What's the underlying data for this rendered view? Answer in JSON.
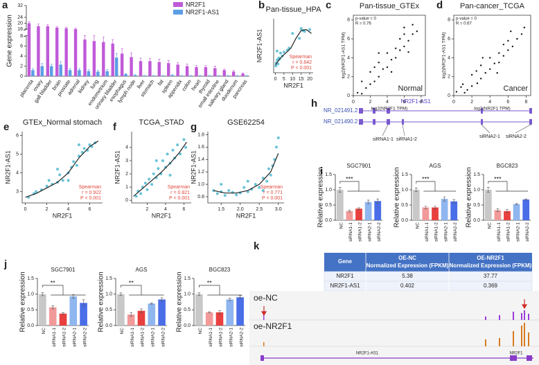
{
  "chart_data": [
    {
      "type": "grouped_bar",
      "panel": "a",
      "y_label": "Gene expression",
      "categories": [
        "placenta",
        "ovary",
        "gall bladder",
        "brain",
        "prostate",
        "adrenal",
        "kidney",
        "lung",
        "endometrium",
        "urinary bladder",
        "esophagus",
        "lymph node",
        "liver",
        "stomach",
        "fat",
        "spleen",
        "appendix",
        "colon",
        "heart",
        "thyroid",
        "small intestine",
        "salivary gland",
        "duodenum",
        "pancreas"
      ],
      "series": [
        {
          "name": "NR2F1",
          "color": "#c05ad8",
          "values": [
            20,
            18,
            18,
            17,
            16.5,
            16,
            7.3,
            7,
            6.8,
            6.5,
            4.5,
            3.8,
            3,
            3,
            2.8,
            2.6,
            2.3,
            2,
            1.8,
            1.8,
            1.6,
            1.2,
            0.9,
            0.5
          ],
          "errors": [
            1,
            1.5,
            1,
            0.8,
            0.8,
            0.8,
            1.2,
            1.5,
            1,
            0.8,
            1,
            0.8,
            0.6,
            0.5,
            0.6,
            0.5,
            0.4,
            0.4,
            0.3,
            0.3,
            0.4,
            0.2,
            0.2,
            0.1
          ]
        },
        {
          "name": "NR2F1-AS1",
          "color": "#5b9ee6",
          "values": [
            1.2,
            2,
            2,
            2.3,
            1.2,
            1.2,
            1,
            0.9,
            1,
            3.7,
            0.4,
            0.2,
            0.1,
            0.1,
            0.1,
            0.2,
            0.1,
            0.1,
            0.1,
            0.1,
            0.1,
            0.1,
            0.1,
            0.1
          ],
          "errors": [
            0.3,
            0.5,
            0.4,
            0.6,
            0.3,
            0.3,
            0.3,
            0.3,
            0.3,
            0.8,
            0.1,
            0.1,
            0.05,
            0.05,
            0.05,
            0.1,
            0.05,
            0.05,
            0.05,
            0.05,
            0.05,
            0.05,
            0.05,
            0.05
          ]
        }
      ],
      "ylim": [
        0,
        32
      ],
      "axis_break": [
        8,
        16
      ],
      "yticks": [
        0,
        2,
        4,
        6,
        8,
        16,
        20,
        24,
        32
      ]
    },
    {
      "type": "scatter",
      "panel": "b",
      "title": "Pan-tissue_HPA",
      "x_label": "NR2F1",
      "y_label": "NR2F1-AS1",
      "color": "#4fb8d0",
      "x": [
        0.3,
        0.5,
        1,
        1.5,
        2,
        2.5,
        3,
        4,
        5,
        7,
        8,
        10,
        14,
        15,
        16,
        17,
        20,
        1
      ],
      "y": [
        0.2,
        0.5,
        0.8,
        0.4,
        1,
        0.9,
        1.5,
        1.2,
        1.6,
        1.8,
        2,
        3.5,
        3,
        4,
        3.8,
        3.7,
        3.9,
        1.7
      ],
      "fit_x": [
        0,
        3,
        6,
        9,
        12,
        15,
        18,
        21
      ],
      "fit_y": [
        0.3,
        1,
        1.5,
        2,
        3,
        3.8,
        3.9,
        3.5
      ],
      "xlim": [
        -1,
        22
      ],
      "xticks": [
        0,
        5,
        10,
        15,
        20
      ],
      "ylim": [
        -0.5,
        5
      ],
      "annotations": [
        "Spearman",
        "r = 0.642",
        "P < 0.001"
      ],
      "annotation_color": "#e0463a"
    },
    {
      "type": "scatter",
      "panel": "c",
      "title": "Pan-tissue_GTEx",
      "x_label": "log2(NR2F1 TPM)",
      "y_label": "log2(NR2F1-AS1 TPM)",
      "color": "#111111",
      "x": [
        0.5,
        1,
        1.5,
        2,
        2,
        2.5,
        3,
        3,
        3.5,
        4,
        4,
        4.5,
        5,
        5,
        5.5,
        5.5,
        6,
        6,
        6.5,
        6.5,
        7,
        7,
        7.5,
        1,
        3,
        4.5,
        6,
        2.5
      ],
      "y": [
        0.3,
        1.5,
        0.8,
        2.5,
        1.2,
        3,
        2,
        3.5,
        2.8,
        4.5,
        3,
        3.8,
        5,
        4,
        4.8,
        6,
        5.2,
        6.5,
        5.8,
        4.6,
        6.5,
        7.5,
        6.8,
        0.2,
        4.5,
        2.5,
        7.2,
        1.5
      ],
      "xlim": [
        0,
        8.5
      ],
      "xticks": [
        0,
        2,
        4,
        6,
        8
      ],
      "ylim": [
        0,
        8.5
      ],
      "yticks": [
        0,
        2,
        4,
        6,
        8
      ],
      "stats": [
        "p-value = 0",
        "R = 0.76"
      ],
      "tag": "Normal"
    },
    {
      "type": "scatter",
      "panel": "d",
      "title": "Pan-cancer_TCGA",
      "x_label": "log2(NR2F1 TPM)",
      "y_label": "log2(NR2F1-AS1 TPM)",
      "color": "#111111",
      "x": [
        0.3,
        1,
        1.5,
        2,
        2,
        2.5,
        3,
        3,
        3.5,
        4,
        4,
        4.5,
        5,
        5,
        5.5,
        5.5,
        6,
        6,
        6.5,
        7,
        7.5,
        1.2,
        3.2,
        4.8,
        6.3,
        2.6,
        0.8,
        7.8
      ],
      "y": [
        0.4,
        1.2,
        0.6,
        2.2,
        1,
        2.6,
        1.8,
        3.2,
        2.4,
        4,
        2.8,
        3.4,
        4.5,
        3.5,
        4.2,
        5.4,
        4.8,
        5.8,
        5.2,
        6,
        6.5,
        0.3,
        4,
        2.4,
        6.8,
        1.3,
        0.9,
        7.2
      ],
      "xlim": [
        0,
        8.5
      ],
      "xticks": [
        0,
        2,
        4,
        6,
        8
      ],
      "ylim": [
        0,
        8.5
      ],
      "yticks": [
        0,
        2,
        4,
        6,
        8
      ],
      "stats": [
        "p-value = 0",
        "R = 0.67"
      ],
      "tag": "Cancer"
    },
    {
      "type": "scatter",
      "panel": "e",
      "title": "GTEx_Normal stomach",
      "x_label": "NR2F1",
      "y_label": "NR2F1-AS1",
      "color": "#4fb8d0",
      "x": [
        0.3,
        0.8,
        1,
        1.5,
        2,
        2.2,
        2.5,
        3,
        3.2,
        3.5,
        4,
        4.3,
        4.5,
        4.8,
        5,
        5.3,
        5.5,
        5.8,
        6,
        6.2,
        6.5,
        5,
        4,
        3
      ],
      "y": [
        2.7,
        2.9,
        3,
        3.1,
        3.3,
        3.6,
        3.4,
        3.5,
        3.9,
        3.6,
        4,
        4.3,
        4.6,
        4.4,
        4.9,
        5.1,
        5.3,
        5.2,
        5.5,
        5.4,
        5.6,
        5.5,
        3.6,
        4.2
      ],
      "fit_x": [
        0,
        1,
        2,
        3,
        4,
        5,
        6,
        6.8
      ],
      "fit_y": [
        2.7,
        2.9,
        3.2,
        3.5,
        4,
        4.8,
        5.4,
        5.7
      ],
      "xlim": [
        -0.3,
        7.2
      ],
      "xticks": [
        0,
        2,
        4,
        6
      ],
      "ylim": [
        2.4,
        6.2
      ],
      "yticks": [
        3,
        4,
        5,
        6
      ],
      "annotations": [
        "Spearman",
        "r = 0.922",
        "P < 0.001"
      ],
      "annotation_color": "#e0463a"
    },
    {
      "type": "scatter",
      "panel": "f",
      "title": "TCGA_STAD",
      "x_label": "NR2F1",
      "y_label": "NR2F1-AS1",
      "color": "#4fb8d0",
      "x": [
        0.8,
        1,
        1.3,
        1.5,
        1.8,
        2,
        2.2,
        2.5,
        2.7,
        3,
        3.2,
        3.5,
        3.7,
        4,
        4.2,
        4.5,
        4.8,
        5,
        5.3,
        5.6,
        6,
        6.2,
        3,
        4.5
      ],
      "y": [
        0.3,
        0.7,
        0.5,
        1,
        1.3,
        0.8,
        1.6,
        1.2,
        2,
        1.7,
        2.4,
        2,
        3,
        2.5,
        3.5,
        2.8,
        3.8,
        3.2,
        4.2,
        3.5,
        4.6,
        4,
        3,
        1.9
      ],
      "fit_x": [
        0.5,
        1.5,
        2.5,
        3.5,
        4.5,
        5.5,
        6.3
      ],
      "fit_y": [
        0.3,
        0.9,
        1.5,
        2.1,
        2.8,
        3.6,
        4.4
      ],
      "xlim": [
        0.3,
        6.8
      ],
      "xticks": [
        2,
        4,
        6
      ],
      "ylim": [
        -0.2,
        5.2
      ],
      "yticks": [
        0,
        1,
        2,
        3,
        4
      ],
      "annotations": [
        "Spearman",
        "r = 0.821",
        "P < 0.001"
      ],
      "annotation_color": "#e0463a"
    },
    {
      "type": "scatter",
      "panel": "g",
      "title": "GSE62254",
      "x_label": "NR2F1",
      "y_label": "NR2F1-AS1",
      "color": "#4fb8d0",
      "x": [
        1.3,
        1.4,
        1.5,
        1.6,
        1.7,
        1.8,
        1.9,
        2,
        2.1,
        2.2,
        2.3,
        2.4,
        2.5,
        2.6,
        2.7,
        2.75,
        2.8,
        2.9,
        2.95,
        3,
        2.85,
        1.5,
        2.2,
        2.6
      ],
      "y": [
        0.9,
        0.85,
        0.88,
        0.82,
        0.9,
        0.87,
        0.83,
        0.86,
        0.95,
        0.88,
        0.92,
        1,
        0.95,
        1.1,
        1.05,
        1.25,
        1.15,
        1.4,
        1.6,
        1.75,
        1.3,
        1,
        1.05,
        0.9
      ],
      "fit_x": [
        1.3,
        1.6,
        1.9,
        2.2,
        2.5,
        2.8,
        3
      ],
      "fit_y": [
        0.9,
        0.86,
        0.86,
        0.9,
        1,
        1.2,
        1.5
      ],
      "xlim": [
        1.15,
        3.15
      ],
      "xticks": [
        1.5,
        {
          "value": 2,
          "label": "2.0"
        },
        2.5,
        {
          "value": 3,
          "label": "3.0"
        }
      ],
      "ylim": [
        0.7,
        1.85
      ],
      "yticks": [
        0.8,
        {
          "value": 1,
          "label": "1.0"
        },
        1.2,
        1.4,
        1.6,
        1.8
      ],
      "annotations": [
        "Spearman",
        "r = 0.771",
        "P < 0.001"
      ],
      "annotation_color": "#e0463a"
    },
    {
      "type": "bar",
      "panel": "i",
      "title": "SGC7901",
      "y_label": "Relative expression",
      "significance": "***",
      "categories": [
        "NC",
        "siRNA1-1",
        "siRNA1-2",
        "siRNA2-1",
        "siRNA2-2"
      ],
      "colors": [
        "#c8c8c8",
        "#f29a9a",
        "#e8403f",
        "#8fb6ef",
        "#4a6ee8"
      ],
      "values": [
        1,
        0.3,
        0.38,
        0.6,
        0.63
      ],
      "errors": [
        0.08,
        0.03,
        0.03,
        0.06,
        0.07
      ],
      "ylim": [
        0,
        1.5
      ],
      "yticks": [
        {
          "value": 0,
          "label": "0.0"
        },
        0.5,
        {
          "value": 1,
          "label": "1.0"
        },
        1.5
      ]
    },
    {
      "type": "bar",
      "title": "AGS",
      "y_label": "Relative expression",
      "significance": "***",
      "categories": [
        "NC",
        "siRNA1-1",
        "siRNA1-2",
        "siRNA2-1",
        "siRNA2-2"
      ],
      "colors": [
        "#c8c8c8",
        "#f29a9a",
        "#e8403f",
        "#8fb6ef",
        "#4a6ee8"
      ],
      "values": [
        1,
        0.42,
        0.42,
        0.7,
        0.62
      ],
      "errors": [
        0.06,
        0.04,
        0.04,
        0.07,
        0.06
      ],
      "ylim": [
        0,
        1.5
      ],
      "yticks": [
        {
          "value": 0,
          "label": "0.0"
        },
        0.5,
        {
          "value": 1,
          "label": "1.0"
        },
        1.5
      ]
    },
    {
      "type": "bar",
      "title": "BGC823",
      "y_label": "Relative expression",
      "significance": "***",
      "categories": [
        "NC",
        "siRNA1-1",
        "siRNA1-2",
        "siRNA2-1",
        "siRNA2-2"
      ],
      "colors": [
        "#c8c8c8",
        "#f29a9a",
        "#e8403f",
        "#8fb6ef",
        "#4a6ee8"
      ],
      "values": [
        1,
        0.33,
        0.3,
        0.53,
        0.68
      ],
      "errors": [
        0.08,
        0.05,
        0.05,
        0.02,
        0.02
      ],
      "ylim": [
        0,
        1.5
      ],
      "yticks": [
        {
          "value": 0,
          "label": "0.0"
        },
        0.5,
        {
          "value": 1,
          "label": "1.0"
        },
        1.5
      ]
    },
    {
      "type": "bar",
      "panel": "j",
      "title": "SGC7901",
      "y_label": "Relative expression",
      "significance": "**",
      "categories": [
        "NC",
        "siRNA1-1",
        "siRNA1-2",
        "siRNA2-1",
        "siRNA2-2"
      ],
      "colors": [
        "#c8c8c8",
        "#f29a9a",
        "#e8403f",
        "#8fb6ef",
        "#4a6ee8"
      ],
      "values": [
        1,
        0.58,
        0.38,
        0.93,
        0.72
      ],
      "errors": [
        0.05,
        0.05,
        0.03,
        0.06,
        0.1
      ],
      "ylim": [
        0,
        1.5
      ],
      "yticks": [
        {
          "value": 0,
          "label": "0.0"
        },
        0.5,
        {
          "value": 1,
          "label": "1.0"
        },
        1.5
      ]
    },
    {
      "type": "bar",
      "title": "AGS",
      "y_label": "Relative expression",
      "significance": "**",
      "categories": [
        "NC",
        "siRNA1-1",
        "siRNA1-2",
        "siRNA2-1",
        "siRNA2-2"
      ],
      "colors": [
        "#c8c8c8",
        "#f29a9a",
        "#e8403f",
        "#8fb6ef",
        "#4a6ee8"
      ],
      "values": [
        1,
        0.35,
        0.47,
        0.7,
        0.83
      ],
      "errors": [
        0.04,
        0.06,
        0.06,
        0.02,
        0.05
      ],
      "ylim": [
        0,
        1.5
      ],
      "yticks": [
        {
          "value": 0,
          "label": "0.0"
        },
        0.5,
        {
          "value": 1,
          "label": "1.0"
        },
        1.5
      ]
    },
    {
      "type": "bar",
      "title": "BGC823",
      "y_label": "Relative expression",
      "significance": "**",
      "categories": [
        "NC",
        "siRNA1-1",
        "siRNA1-2",
        "siRNA2-1",
        "siRNA2-2"
      ],
      "colors": [
        "#c8c8c8",
        "#f29a9a",
        "#e8403f",
        "#8fb6ef",
        "#4a6ee8"
      ],
      "values": [
        1,
        0.42,
        0.42,
        0.83,
        0.9
      ],
      "errors": [
        0.04,
        0.02,
        0.05,
        0.04,
        0.05
      ],
      "ylim": [
        0,
        1.5
      ],
      "yticks": [
        {
          "value": 0,
          "label": "0.0"
        },
        0.5,
        {
          "value": 1,
          "label": "1.0"
        },
        1.5
      ]
    }
  ],
  "transcript_diagram": {
    "panel": "h",
    "gene": "NR2F1-AS1",
    "transcripts": [
      "NR_021491.2",
      "NR_021490.2"
    ],
    "sirnas": [
      "siRNA1-1",
      "siRNA1-2",
      "siRNA2-1",
      "siRNA2-2"
    ]
  },
  "expression_table": {
    "panel": "k",
    "header": [
      "Gene",
      "OE-NC",
      "Normalized Expression (FPKM)",
      "OE-NR2F1",
      "Normalized Expression (FPKM)"
    ],
    "rows": [
      [
        "NR2F1",
        "5.38",
        "37.77"
      ],
      [
        "NR2F1-AS1",
        "0.402",
        "0.369"
      ]
    ],
    "tracks": [
      "oe-NC",
      "oe-NR2F1"
    ],
    "genes": [
      "NR2F1-AS1",
      "NR2F1"
    ]
  }
}
